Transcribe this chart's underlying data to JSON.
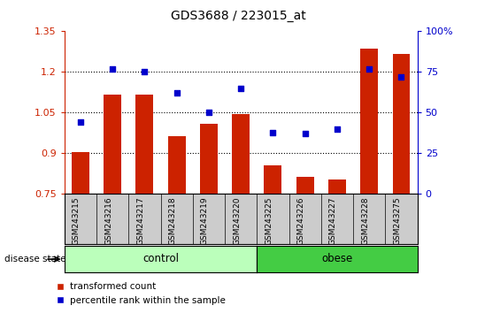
{
  "title": "GDS3688 / 223015_at",
  "samples": [
    "GSM243215",
    "GSM243216",
    "GSM243217",
    "GSM243218",
    "GSM243219",
    "GSM243220",
    "GSM243225",
    "GSM243226",
    "GSM243227",
    "GSM243228",
    "GSM243275"
  ],
  "bar_values": [
    0.905,
    1.115,
    1.115,
    0.965,
    1.01,
    1.045,
    0.855,
    0.815,
    0.805,
    1.285,
    1.265
  ],
  "scatter_values_pct": [
    44,
    77,
    75,
    62,
    50,
    65,
    38,
    37,
    40,
    77,
    72
  ],
  "n_control": 6,
  "n_obese": 5,
  "ylim_left": [
    0.75,
    1.35
  ],
  "ylim_right": [
    0,
    100
  ],
  "yticks_left": [
    0.75,
    0.9,
    1.05,
    1.2,
    1.35
  ],
  "yticks_right": [
    0,
    25,
    50,
    75,
    100
  ],
  "ytick_labels_left": [
    "0.75",
    "0.9",
    "1.05",
    "1.2",
    "1.35"
  ],
  "ytick_labels_right": [
    "0",
    "25",
    "50",
    "75",
    "100%"
  ],
  "bar_color": "#cc2200",
  "scatter_color": "#0000cc",
  "control_color": "#bbffbb",
  "obese_color": "#44cc44",
  "xticklabel_bg": "#cccccc",
  "left_axis_color": "#cc2200",
  "right_axis_color": "#0000cc",
  "dotted_line_values": [
    0.9,
    1.05,
    1.2
  ],
  "bar_width": 0.55,
  "legend_items": [
    "transformed count",
    "percentile rank within the sample"
  ]
}
